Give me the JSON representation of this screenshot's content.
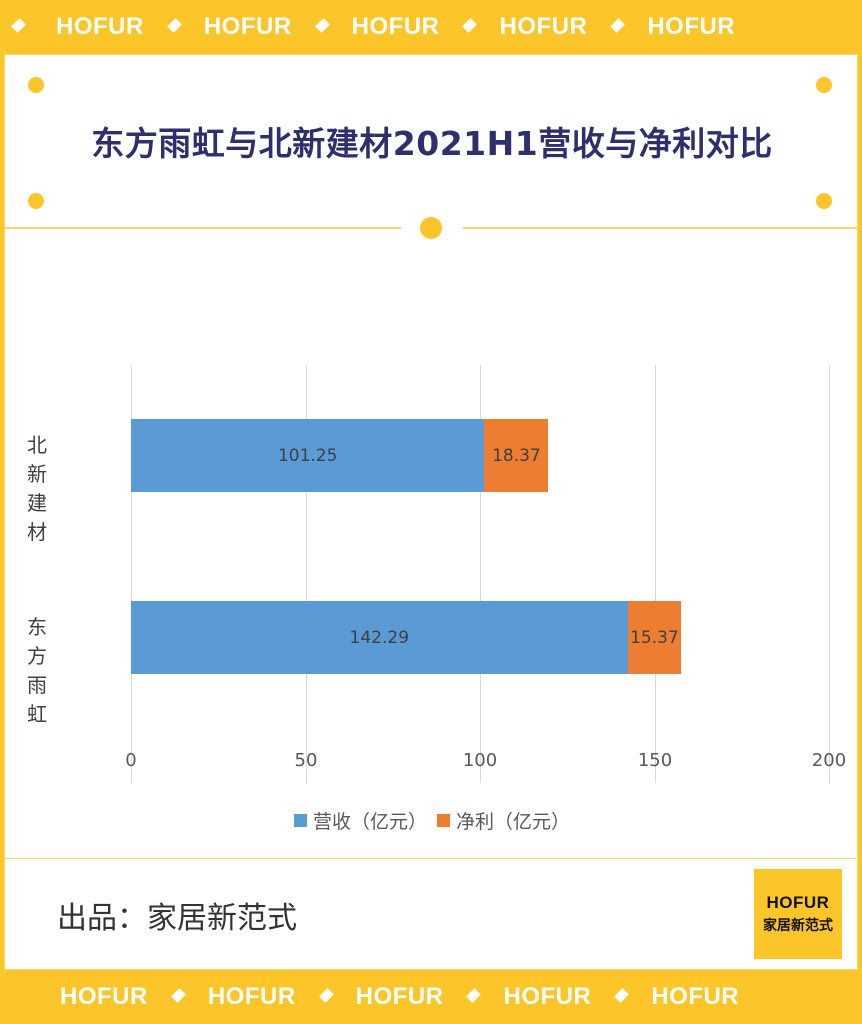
{
  "banner": {
    "word": "HOFUR",
    "separator_icon": "diamond-icon",
    "repeat": 5
  },
  "colors": {
    "brand_yellow": "#fcc529",
    "title_navy": "#2e2f6c",
    "revenue_blue": "#5b9bd5",
    "profit_orange": "#ed7d31"
  },
  "header": {
    "title": "东方雨虹与北新建材2021H1营收与净利对比"
  },
  "chart_data": {
    "type": "bar",
    "orientation": "horizontal",
    "stacked": true,
    "title": "东方雨虹与北新建材2021H1营收与净利对比",
    "categories": [
      "北新建材",
      "东方雨虹"
    ],
    "series": [
      {
        "name": "营收（亿元）",
        "color": "#5b9bd5",
        "values": [
          101.25,
          142.29
        ]
      },
      {
        "name": "净利（亿元）",
        "color": "#ed7d31",
        "values": [
          18.37,
          15.37
        ]
      }
    ],
    "xlabel": "",
    "ylabel": "",
    "xlim": [
      0,
      200
    ],
    "x_ticks": [
      "0",
      "50",
      "100",
      "150",
      "200"
    ],
    "grid": "vertical",
    "legend_position": "bottom",
    "data_labels": true
  },
  "legend": {
    "items": [
      {
        "label": "营收（亿元）",
        "icon": "blue-square-icon"
      },
      {
        "label": "净利（亿元）",
        "icon": "orange-square-icon"
      }
    ]
  },
  "footer": {
    "producer": "出品：家居新范式",
    "logo_en": "HOFUR",
    "logo_cn": "家居新范式"
  }
}
